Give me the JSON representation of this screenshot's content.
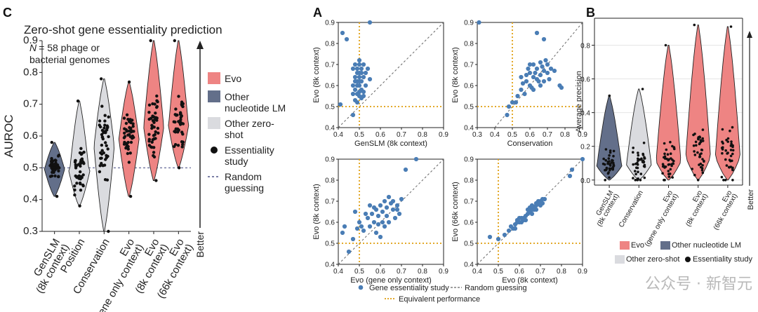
{
  "panel_c": {
    "panel_label": "C",
    "title": "Zero-shot gene essentiality prediction",
    "annotation_line1": "= 58 phage or",
    "annotation_italic": "N",
    "annotation_line2": "bacterial genomes",
    "better_label": "Better",
    "legend": [
      {
        "label_lines": [
          "Evo"
        ],
        "color": "#ee8483",
        "kind": "swatch"
      },
      {
        "label_lines": [
          "Other",
          "nucleotide LM"
        ],
        "color": "#636f8a",
        "kind": "swatch"
      },
      {
        "label_lines": [
          "Other zero-",
          "shot"
        ],
        "color": "#dadbdf",
        "kind": "swatch"
      },
      {
        "label_lines": [
          "Essentiality",
          "study"
        ],
        "color": "#111111",
        "kind": "dot"
      },
      {
        "label_lines": [
          "Random",
          "guessing"
        ],
        "color": "#7a7fa6",
        "kind": "dash"
      }
    ]
  },
  "panel_a": {
    "panel_label": "A",
    "legend": [
      {
        "label": "Gene essentiality study",
        "color": "#4a7db5",
        "kind": "dot"
      },
      {
        "label": "Random guessing",
        "color": "#666666",
        "kind": "dash"
      },
      {
        "label": "Equivalent performance",
        "color": "#e3a92a",
        "kind": "dash"
      }
    ]
  },
  "panel_b": {
    "panel_label": "B",
    "better_label": "Better",
    "legend": [
      {
        "label": "Evo",
        "color": "#ee8483",
        "kind": "swatch"
      },
      {
        "label": "Other nucleotide LM",
        "color": "#636f8a",
        "kind": "swatch"
      },
      {
        "label": "Other zero-shot",
        "color": "#dadbdf",
        "kind": "swatch"
      },
      {
        "label": "Essentiality study",
        "color": "#111111",
        "kind": "dot"
      }
    ]
  },
  "watermark": "公众号 · 新智元",
  "chart_data": [
    {
      "type": "violin",
      "id": "auroc",
      "ylabel": "AUROC",
      "ylim": [
        0.3,
        0.9
      ],
      "yticks": [
        "0.3",
        "0.4",
        "0.5",
        "0.6",
        "0.7",
        "0.8",
        "0.9"
      ],
      "baseline": 0.5,
      "categories": [
        {
          "label_lines": [
            "GenSLM",
            "(8k context)"
          ],
          "color": "#636f8a",
          "min": 0.41,
          "max": 0.58,
          "median": 0.5
        },
        {
          "label_lines": [
            "Position"
          ],
          "color": "#dadbdf",
          "min": 0.38,
          "max": 0.71,
          "median": 0.49
        },
        {
          "label_lines": [
            "Conservation"
          ],
          "color": "#dadbdf",
          "min": 0.3,
          "max": 0.78,
          "median": 0.58
        },
        {
          "label_lines": [
            "Evo",
            "(gene only context)"
          ],
          "color": "#ee8483",
          "min": 0.41,
          "max": 0.77,
          "median": 0.6
        },
        {
          "label_lines": [
            "Evo",
            "(8k context)"
          ],
          "color": "#ee8483",
          "min": 0.46,
          "max": 0.9,
          "median": 0.64
        },
        {
          "label_lines": [
            "Evo",
            "(66k context)"
          ],
          "color": "#ee8483",
          "min": 0.5,
          "max": 0.9,
          "median": 0.64
        }
      ]
    },
    {
      "type": "scatter",
      "id": "a1",
      "xlabel": "GenSLM (8k context)",
      "ylabel": "Evo (8k context)",
      "xlim": [
        0.4,
        0.9
      ],
      "ylim": [
        0.4,
        0.9
      ],
      "xticks": [
        "0.4",
        "0.5",
        "0.6",
        "0.7",
        "0.8",
        "0.9"
      ],
      "yticks": [
        "0.4",
        "0.5",
        "0.6",
        "0.7",
        "0.8",
        "0.9"
      ],
      "points": [
        [
          0.42,
          0.85
        ],
        [
          0.44,
          0.82
        ],
        [
          0.55,
          0.9
        ],
        [
          0.41,
          0.51
        ],
        [
          0.47,
          0.46
        ],
        [
          0.48,
          0.7
        ],
        [
          0.49,
          0.68
        ],
        [
          0.5,
          0.72
        ],
        [
          0.51,
          0.66
        ],
        [
          0.52,
          0.7
        ],
        [
          0.48,
          0.64
        ],
        [
          0.5,
          0.62
        ],
        [
          0.49,
          0.6
        ],
        [
          0.51,
          0.58
        ],
        [
          0.47,
          0.56
        ],
        [
          0.5,
          0.55
        ],
        [
          0.48,
          0.53
        ],
        [
          0.52,
          0.64
        ],
        [
          0.53,
          0.6
        ],
        [
          0.49,
          0.66
        ],
        [
          0.5,
          0.7
        ],
        [
          0.51,
          0.62
        ],
        [
          0.47,
          0.6
        ],
        [
          0.5,
          0.57
        ],
        [
          0.52,
          0.55
        ],
        [
          0.49,
          0.52
        ],
        [
          0.48,
          0.58
        ],
        [
          0.51,
          0.68
        ],
        [
          0.53,
          0.66
        ],
        [
          0.5,
          0.6
        ],
        [
          0.55,
          0.63
        ],
        [
          0.49,
          0.62
        ],
        [
          0.5,
          0.64
        ],
        [
          0.52,
          0.57
        ],
        [
          0.54,
          0.68
        ],
        [
          0.48,
          0.62
        ],
        [
          0.47,
          0.68
        ],
        [
          0.51,
          0.54
        ],
        [
          0.49,
          0.56
        ],
        [
          0.5,
          0.66
        ]
      ]
    },
    {
      "type": "scatter",
      "id": "a2",
      "xlabel": "Conservation",
      "ylabel": "Evo (8k context)",
      "xlim": [
        0.3,
        0.9
      ],
      "ylim": [
        0.4,
        0.9
      ],
      "xticks": [
        "0.3",
        "0.4",
        "0.5",
        "0.6",
        "0.7",
        "0.8",
        "0.9"
      ],
      "yticks": [
        "0.4",
        "0.5",
        "0.6",
        "0.7",
        "0.8",
        "0.9"
      ],
      "points": [
        [
          0.31,
          0.9
        ],
        [
          0.64,
          0.85
        ],
        [
          0.68,
          0.82
        ],
        [
          0.48,
          0.5
        ],
        [
          0.5,
          0.52
        ],
        [
          0.47,
          0.46
        ],
        [
          0.55,
          0.58
        ],
        [
          0.58,
          0.62
        ],
        [
          0.6,
          0.66
        ],
        [
          0.62,
          0.7
        ],
        [
          0.64,
          0.68
        ],
        [
          0.66,
          0.71
        ],
        [
          0.68,
          0.67
        ],
        [
          0.7,
          0.7
        ],
        [
          0.72,
          0.68
        ],
        [
          0.74,
          0.67
        ],
        [
          0.77,
          0.6
        ],
        [
          0.78,
          0.59
        ],
        [
          0.6,
          0.6
        ],
        [
          0.62,
          0.64
        ],
        [
          0.65,
          0.62
        ],
        [
          0.56,
          0.61
        ],
        [
          0.58,
          0.65
        ],
        [
          0.6,
          0.7
        ],
        [
          0.63,
          0.66
        ],
        [
          0.66,
          0.6
        ],
        [
          0.68,
          0.62
        ],
        [
          0.7,
          0.66
        ],
        [
          0.55,
          0.64
        ],
        [
          0.57,
          0.56
        ],
        [
          0.53,
          0.55
        ],
        [
          0.61,
          0.59
        ],
        [
          0.64,
          0.63
        ],
        [
          0.67,
          0.69
        ],
        [
          0.69,
          0.72
        ],
        [
          0.52,
          0.52
        ],
        [
          0.59,
          0.68
        ],
        [
          0.62,
          0.58
        ],
        [
          0.66,
          0.65
        ],
        [
          0.71,
          0.63
        ]
      ]
    },
    {
      "type": "scatter",
      "id": "a3",
      "xlabel": "Evo (gene only context)",
      "ylabel": "Evo (8k context)",
      "xlim": [
        0.4,
        0.9
      ],
      "ylim": [
        0.4,
        0.9
      ],
      "xticks": [
        "0.4",
        "0.5",
        "0.6",
        "0.7",
        "0.8",
        "0.9"
      ],
      "yticks": [
        "0.4",
        "0.5",
        "0.6",
        "0.7",
        "0.8",
        "0.9"
      ],
      "points": [
        [
          0.77,
          0.9
        ],
        [
          0.72,
          0.85
        ],
        [
          0.42,
          0.55
        ],
        [
          0.43,
          0.58
        ],
        [
          0.45,
          0.46
        ],
        [
          0.47,
          0.52
        ],
        [
          0.48,
          0.65
        ],
        [
          0.5,
          0.6
        ],
        [
          0.52,
          0.56
        ],
        [
          0.54,
          0.62
        ],
        [
          0.55,
          0.58
        ],
        [
          0.56,
          0.64
        ],
        [
          0.57,
          0.6
        ],
        [
          0.58,
          0.66
        ],
        [
          0.59,
          0.63
        ],
        [
          0.6,
          0.68
        ],
        [
          0.61,
          0.65
        ],
        [
          0.62,
          0.7
        ],
        [
          0.63,
          0.67
        ],
        [
          0.64,
          0.72
        ],
        [
          0.65,
          0.69
        ],
        [
          0.66,
          0.66
        ],
        [
          0.67,
          0.62
        ],
        [
          0.68,
          0.68
        ],
        [
          0.69,
          0.64
        ],
        [
          0.7,
          0.71
        ],
        [
          0.58,
          0.55
        ],
        [
          0.6,
          0.53
        ],
        [
          0.62,
          0.58
        ],
        [
          0.55,
          0.68
        ],
        [
          0.53,
          0.64
        ],
        [
          0.51,
          0.58
        ],
        [
          0.49,
          0.57
        ],
        [
          0.64,
          0.6
        ],
        [
          0.66,
          0.7
        ],
        [
          0.57,
          0.67
        ],
        [
          0.59,
          0.59
        ],
        [
          0.63,
          0.63
        ],
        [
          0.61,
          0.6
        ],
        [
          0.68,
          0.66
        ]
      ]
    },
    {
      "type": "scatter",
      "id": "a4",
      "xlabel": "Evo (8k context)",
      "ylabel": "Evo (66k context)",
      "xlim": [
        0.4,
        0.9
      ],
      "ylim": [
        0.4,
        0.9
      ],
      "xticks": [
        "0.4",
        "0.5",
        "0.6",
        "0.7",
        "0.8",
        "0.9"
      ],
      "yticks": [
        "0.4",
        "0.5",
        "0.6",
        "0.7",
        "0.8",
        "0.9"
      ],
      "points": [
        [
          0.46,
          0.53
        ],
        [
          0.5,
          0.52
        ],
        [
          0.53,
          0.54
        ],
        [
          0.55,
          0.56
        ],
        [
          0.57,
          0.57
        ],
        [
          0.58,
          0.59
        ],
        [
          0.59,
          0.6
        ],
        [
          0.6,
          0.6
        ],
        [
          0.61,
          0.62
        ],
        [
          0.62,
          0.62
        ],
        [
          0.63,
          0.63
        ],
        [
          0.64,
          0.64
        ],
        [
          0.65,
          0.65
        ],
        [
          0.66,
          0.66
        ],
        [
          0.67,
          0.67
        ],
        [
          0.68,
          0.68
        ],
        [
          0.69,
          0.69
        ],
        [
          0.7,
          0.7
        ],
        [
          0.71,
          0.71
        ],
        [
          0.72,
          0.71
        ],
        [
          0.6,
          0.62
        ],
        [
          0.62,
          0.61
        ],
        [
          0.64,
          0.66
        ],
        [
          0.66,
          0.64
        ],
        [
          0.68,
          0.69
        ],
        [
          0.7,
          0.68
        ],
        [
          0.58,
          0.57
        ],
        [
          0.56,
          0.58
        ],
        [
          0.63,
          0.61
        ],
        [
          0.65,
          0.67
        ],
        [
          0.67,
          0.66
        ],
        [
          0.69,
          0.7
        ],
        [
          0.84,
          0.82
        ],
        [
          0.85,
          0.85
        ],
        [
          0.9,
          0.9
        ],
        [
          0.61,
          0.6
        ],
        [
          0.66,
          0.68
        ],
        [
          0.68,
          0.66
        ],
        [
          0.71,
          0.69
        ],
        [
          0.59,
          0.61
        ]
      ]
    },
    {
      "type": "violin",
      "id": "avgprec",
      "ylabel": "Average precision",
      "ylim": [
        -0.03,
        0.96
      ],
      "yticks": [
        "0.0",
        "0.2",
        "0.4",
        "0.6",
        "0.8"
      ],
      "categories": [
        {
          "label_lines": [
            "GenSLM",
            "(8k context)"
          ],
          "color": "#636f8a",
          "min": 0.0,
          "max": 0.5,
          "median": 0.09
        },
        {
          "label_lines": [
            "Conservation"
          ],
          "color": "#dadbdf",
          "min": 0.0,
          "max": 0.54,
          "median": 0.1
        },
        {
          "label_lines": [
            "Evo",
            "(gene only context)"
          ],
          "color": "#ee8483",
          "min": 0.0,
          "max": 0.8,
          "median": 0.12
        },
        {
          "label_lines": [
            "Evo",
            "(8k context)"
          ],
          "color": "#ee8483",
          "min": 0.0,
          "max": 0.92,
          "median": 0.15
        },
        {
          "label_lines": [
            "Evo",
            "(66k context)"
          ],
          "color": "#ee8483",
          "min": 0.0,
          "max": 0.91,
          "median": 0.15
        }
      ]
    }
  ]
}
